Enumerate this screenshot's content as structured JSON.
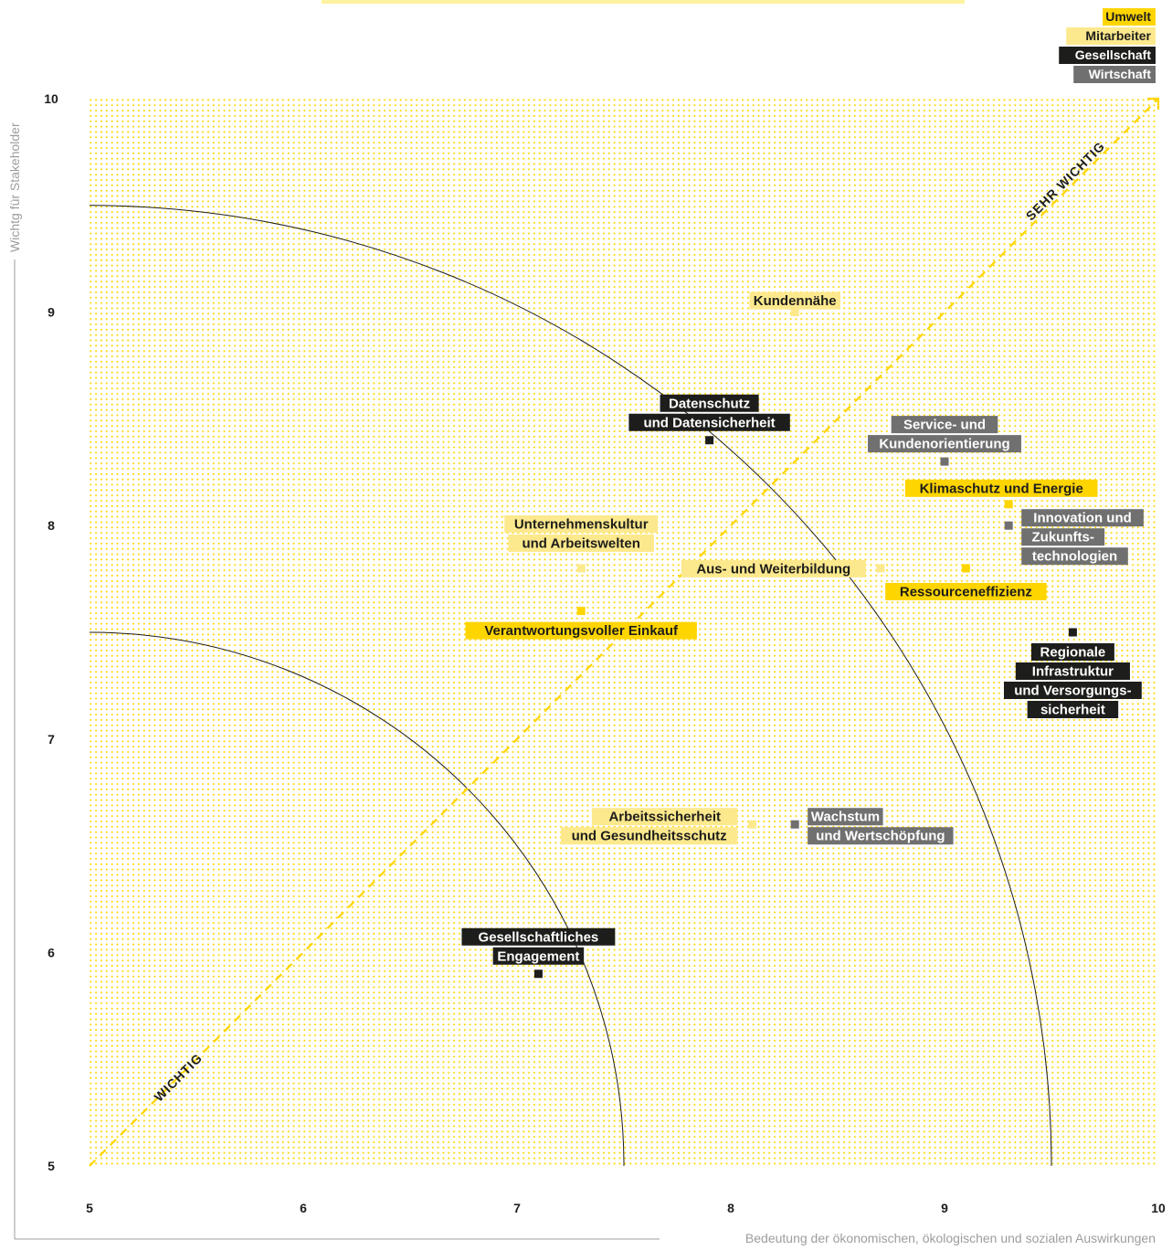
{
  "colors": {
    "umwelt": "#ffd500",
    "mitarbeiter": "#fde98d",
    "gesellschaft": "#1d1d1b",
    "wirtschaft": "#707070",
    "dots": "#ffd500",
    "axis_text": "#9d9d9d"
  },
  "chart_data": {
    "type": "scatter",
    "title": "",
    "xlabel": "Bedeutung der ökonomischen, ökologischen und sozialen Auswirkungen",
    "ylabel": "Wichtg für Stakeholder",
    "xlim": [
      5,
      10
    ],
    "ylim": [
      5,
      10
    ],
    "x_ticks": [
      "5",
      "6",
      "7",
      "8",
      "9",
      "10"
    ],
    "y_ticks": [
      "5",
      "6",
      "7",
      "8",
      "9",
      "10"
    ],
    "grid": "dotted",
    "legend": {
      "placement": "top-right",
      "entries": [
        {
          "key": "umwelt",
          "label": "Umwelt",
          "color": "#ffd500",
          "text_color": "#1d1d1b"
        },
        {
          "key": "mitarbeiter",
          "label": "Mitarbeiter",
          "color": "#fde98d",
          "text_color": "#1d1d1b"
        },
        {
          "key": "gesellschaft",
          "label": "Gesellschaft",
          "color": "#1d1d1b",
          "text_color": "#ffffff"
        },
        {
          "key": "wirtschaft",
          "label": "Wirtschaft",
          "color": "#707070",
          "text_color": "#ffffff"
        }
      ]
    },
    "arcs": [
      {
        "radius": 2.5
      },
      {
        "radius": 4.5
      }
    ],
    "diagonal_labels": {
      "low": "WICHTIG",
      "high": "SEHR WICHTIG"
    },
    "points": [
      {
        "label": [
          "Kundennähe"
        ],
        "x": 8.3,
        "y": 9.0,
        "category": "mitarbeiter"
      },
      {
        "label": [
          "Datenschutz",
          "und Datensicherheit"
        ],
        "x": 7.9,
        "y": 8.4,
        "category": "gesellschaft"
      },
      {
        "label": [
          "Service- und",
          "Kundenorientierung"
        ],
        "x": 9.0,
        "y": 8.3,
        "category": "wirtschaft"
      },
      {
        "label": [
          "Klimaschutz und Energie"
        ],
        "x": 9.3,
        "y": 8.1,
        "category": "umwelt"
      },
      {
        "label": [
          "Innovation und",
          "Zukunfts-",
          "technologien"
        ],
        "x": 9.3,
        "y": 8.0,
        "category": "wirtschaft"
      },
      {
        "label": [
          "Unternehmenskultur",
          "und Arbeitswelten"
        ],
        "x": 7.3,
        "y": 7.8,
        "category": "mitarbeiter"
      },
      {
        "label": [
          "Aus- und Weiterbildung"
        ],
        "x": 8.7,
        "y": 7.8,
        "category": "mitarbeiter"
      },
      {
        "label": [
          "Ressourceneffizienz"
        ],
        "x": 9.1,
        "y": 7.8,
        "category": "umwelt"
      },
      {
        "label": [
          "Verantwortungsvoller Einkauf"
        ],
        "x": 7.3,
        "y": 7.6,
        "category": "umwelt"
      },
      {
        "label": [
          "Regionale",
          "Infrastruktur",
          "und Versorgungs-",
          "sicherheit"
        ],
        "x": 9.6,
        "y": 7.5,
        "category": "gesellschaft"
      },
      {
        "label": [
          "Arbeitssicherheit",
          "und Gesundheitsschutz"
        ],
        "x": 8.1,
        "y": 6.6,
        "category": "mitarbeiter"
      },
      {
        "label": [
          "Wachstum",
          "und Wertschöpfung"
        ],
        "x": 8.3,
        "y": 6.6,
        "category": "wirtschaft"
      },
      {
        "label": [
          "Gesellschaftliches",
          "Engagement"
        ],
        "x": 7.1,
        "y": 5.9,
        "category": "gesellschaft"
      }
    ]
  }
}
